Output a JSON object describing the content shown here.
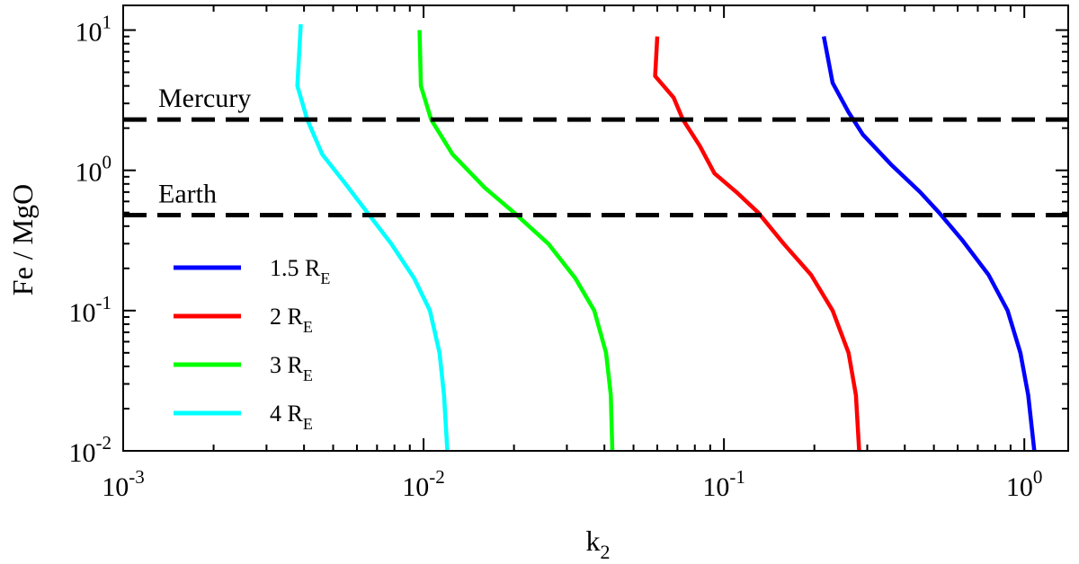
{
  "chart_data": {
    "type": "line",
    "xlabel": "k",
    "xlabel_sub": "2",
    "ylabel": "Fe / MgO",
    "xscale": "log",
    "yscale": "log",
    "xlim": [
      0.001,
      1.4
    ],
    "ylim": [
      0.01,
      15
    ],
    "x_ticks": [
      {
        "value": 0.001,
        "base": "10",
        "exp": "-3"
      },
      {
        "value": 0.01,
        "base": "10",
        "exp": "-2"
      },
      {
        "value": 0.1,
        "base": "10",
        "exp": "-1"
      },
      {
        "value": 1,
        "base": "10",
        "exp": "0"
      }
    ],
    "y_ticks": [
      {
        "value": 0.01,
        "base": "10",
        "exp": "-2"
      },
      {
        "value": 0.1,
        "base": "10",
        "exp": "-1"
      },
      {
        "value": 1,
        "base": "10",
        "exp": "0"
      },
      {
        "value": 10,
        "base": "10",
        "exp": "1"
      }
    ],
    "reference_lines": [
      {
        "label": "Mercury",
        "y": 2.3
      },
      {
        "label": "Earth",
        "y": 0.48
      }
    ],
    "legend_position": "lower-left",
    "series": [
      {
        "name": "1.5 R",
        "name_sub": "E",
        "color": "#0000ff",
        "points": [
          [
            0.215,
            9.0
          ],
          [
            0.23,
            4.2
          ],
          [
            0.26,
            2.6
          ],
          [
            0.29,
            1.8
          ],
          [
            0.36,
            1.1
          ],
          [
            0.45,
            0.7
          ],
          [
            0.52,
            0.5
          ],
          [
            0.62,
            0.32
          ],
          [
            0.76,
            0.18
          ],
          [
            0.88,
            0.1
          ],
          [
            0.97,
            0.05
          ],
          [
            1.03,
            0.025
          ],
          [
            1.08,
            0.01
          ]
        ]
      },
      {
        "name": "2 R",
        "name_sub": "E",
        "color": "#ff0000",
        "points": [
          [
            0.06,
            9.0
          ],
          [
            0.059,
            4.7
          ],
          [
            0.068,
            3.3
          ],
          [
            0.073,
            2.3
          ],
          [
            0.083,
            1.5
          ],
          [
            0.093,
            0.95
          ],
          [
            0.11,
            0.7
          ],
          [
            0.13,
            0.5
          ],
          [
            0.158,
            0.3
          ],
          [
            0.195,
            0.18
          ],
          [
            0.23,
            0.1
          ],
          [
            0.26,
            0.05
          ],
          [
            0.275,
            0.025
          ],
          [
            0.282,
            0.01
          ]
        ]
      },
      {
        "name": "3 R",
        "name_sub": "E",
        "color": "#00ff00",
        "points": [
          [
            0.0097,
            10.0
          ],
          [
            0.0098,
            4.0
          ],
          [
            0.0106,
            2.3
          ],
          [
            0.0125,
            1.3
          ],
          [
            0.016,
            0.75
          ],
          [
            0.02,
            0.5
          ],
          [
            0.026,
            0.3
          ],
          [
            0.032,
            0.17
          ],
          [
            0.037,
            0.1
          ],
          [
            0.0405,
            0.05
          ],
          [
            0.042,
            0.025
          ],
          [
            0.0425,
            0.01
          ]
        ]
      },
      {
        "name": "4 R",
        "name_sub": "E",
        "color": "#00ffff",
        "points": [
          [
            0.0039,
            11.0
          ],
          [
            0.0038,
            4.0
          ],
          [
            0.0041,
            2.3
          ],
          [
            0.0046,
            1.3
          ],
          [
            0.0055,
            0.8
          ],
          [
            0.0065,
            0.5
          ],
          [
            0.0078,
            0.3
          ],
          [
            0.0093,
            0.17
          ],
          [
            0.0105,
            0.1
          ],
          [
            0.0113,
            0.05
          ],
          [
            0.0117,
            0.025
          ],
          [
            0.012,
            0.01
          ]
        ]
      }
    ]
  }
}
